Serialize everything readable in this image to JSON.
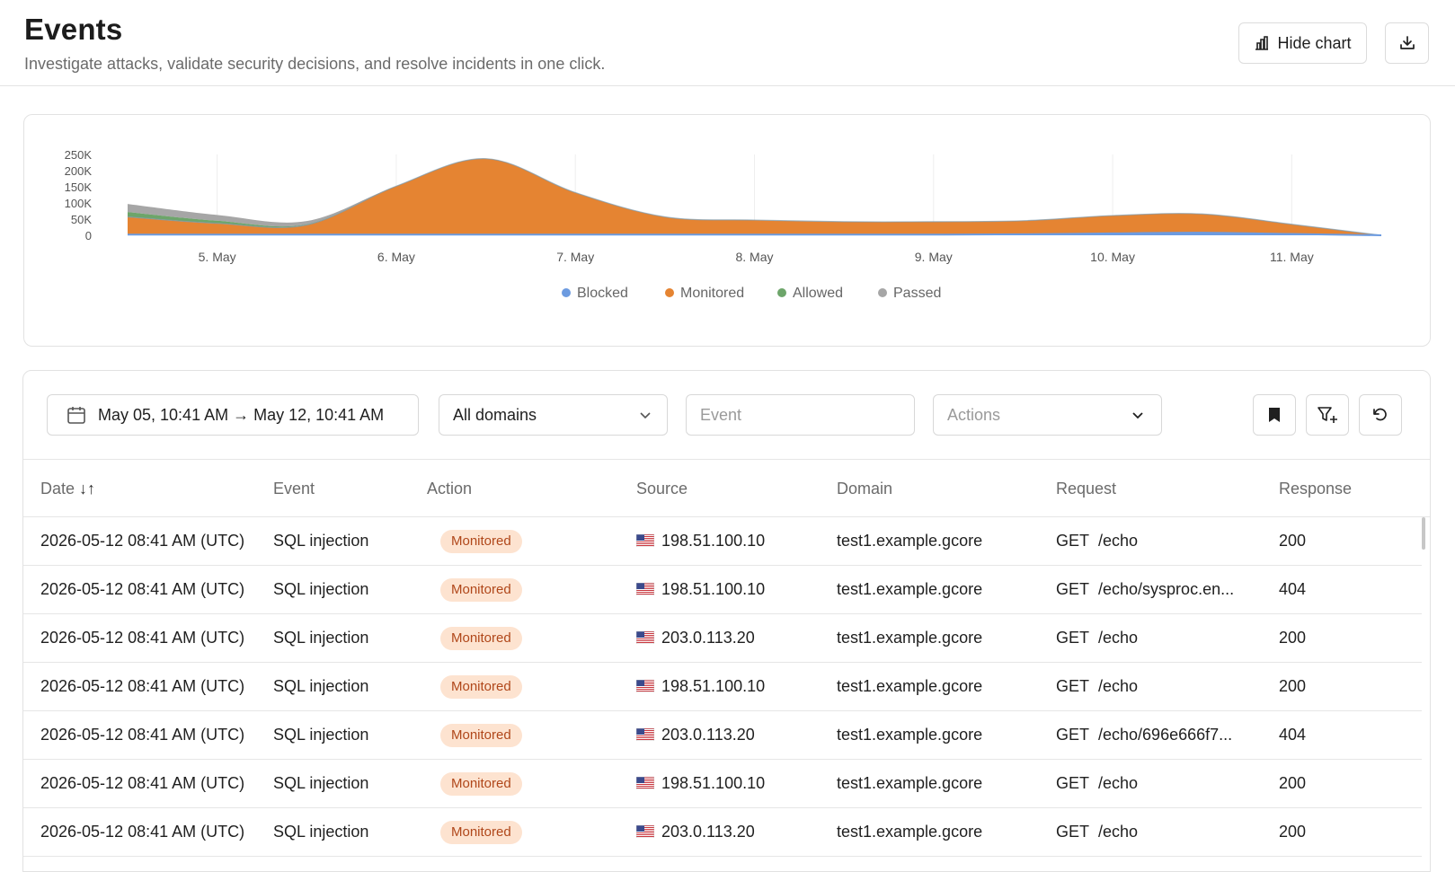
{
  "header": {
    "title": "Events",
    "subtitle": "Investigate attacks, validate security decisions, and resolve incidents in one click.",
    "hide_chart_label": "Hide chart"
  },
  "chart_data": {
    "type": "area",
    "x": [
      "4. May 12:00",
      "5. May",
      "5. May 12:00",
      "6. May",
      "6. May 12:00",
      "7. May",
      "7. May 12:00",
      "8. May",
      "8. May 12:00",
      "9. May",
      "9. May 12:00",
      "10. May",
      "10. May 12:00",
      "11. May",
      "11. May 10:41"
    ],
    "x_tick_labels": [
      "5. May",
      "6. May",
      "7. May",
      "8. May",
      "9. May",
      "10. May",
      "11. May"
    ],
    "y_tick_labels": [
      "0",
      "50K",
      "100K",
      "150K",
      "200K",
      "250K"
    ],
    "ylim": [
      0,
      250000
    ],
    "series": [
      {
        "name": "Blocked",
        "color": "#6c9be0",
        "values": [
          2000,
          2000,
          2000,
          2000,
          2000,
          2000,
          2000,
          2000,
          2000,
          2000,
          3000,
          6000,
          8000,
          4000,
          0
        ]
      },
      {
        "name": "Monitored",
        "color": "#e58432",
        "values": [
          55000,
          35000,
          30000,
          150000,
          235000,
          130000,
          55000,
          45000,
          40000,
          40000,
          42000,
          55000,
          58000,
          30000,
          0
        ]
      },
      {
        "name": "Allowed",
        "color": "#6da56a",
        "values": [
          15000,
          8000,
          2000,
          0,
          0,
          0,
          0,
          0,
          0,
          0,
          0,
          0,
          0,
          0,
          0
        ]
      },
      {
        "name": "Passed",
        "color": "#a6a6a6",
        "values": [
          25000,
          18000,
          10000,
          0,
          0,
          0,
          0,
          0,
          0,
          0,
          0,
          0,
          0,
          0,
          0
        ]
      }
    ],
    "legend_position": "bottom-center",
    "grid": false
  },
  "filters": {
    "date_range": "May 05, 10:41 AM → May 12, 10:41 AM",
    "domain": "All domains",
    "event_placeholder": "Event",
    "actions_placeholder": "Actions"
  },
  "table": {
    "columns": [
      "Date",
      "Event",
      "Action",
      "Source",
      "Domain",
      "Request",
      "Response"
    ],
    "sort_indicator": "↓↑",
    "rows": [
      {
        "date": "2026-05-12 08:41 AM (UTC)",
        "event": "SQL injection",
        "action": "Monitored",
        "source": "198.51.100.10",
        "domain": "test1.example.gcore",
        "method": "GET",
        "path": "/echo",
        "response": "200"
      },
      {
        "date": "2026-05-12 08:41 AM (UTC)",
        "event": "SQL injection",
        "action": "Monitored",
        "source": "198.51.100.10",
        "domain": "test1.example.gcore",
        "method": "GET",
        "path": "/echo/sysproc.en...",
        "response": "404"
      },
      {
        "date": "2026-05-12 08:41 AM (UTC)",
        "event": "SQL injection",
        "action": "Monitored",
        "source": "203.0.113.20",
        "domain": "test1.example.gcore",
        "method": "GET",
        "path": "/echo",
        "response": "200"
      },
      {
        "date": "2026-05-12 08:41 AM (UTC)",
        "event": "SQL injection",
        "action": "Monitored",
        "source": "198.51.100.10",
        "domain": "test1.example.gcore",
        "method": "GET",
        "path": "/echo",
        "response": "200"
      },
      {
        "date": "2026-05-12 08:41 AM (UTC)",
        "event": "SQL injection",
        "action": "Monitored",
        "source": "203.0.113.20",
        "domain": "test1.example.gcore",
        "method": "GET",
        "path": "/echo/696e666f7...",
        "response": "404"
      },
      {
        "date": "2026-05-12 08:41 AM (UTC)",
        "event": "SQL injection",
        "action": "Monitored",
        "source": "198.51.100.10",
        "domain": "test1.example.gcore",
        "method": "GET",
        "path": "/echo",
        "response": "200"
      },
      {
        "date": "2026-05-12 08:41 AM (UTC)",
        "event": "SQL injection",
        "action": "Monitored",
        "source": "203.0.113.20",
        "domain": "test1.example.gcore",
        "method": "GET",
        "path": "/echo",
        "response": "200"
      }
    ]
  },
  "icons": {
    "hide_chart": "bar-chart-icon",
    "download": "download-icon",
    "calendar": "calendar-icon",
    "domain_dropdown": "chevron-down-icon",
    "actions_dropdown": "chevron-down-icon",
    "bookmark": "bookmark-icon",
    "add_filter": "filter-plus-icon",
    "reset": "reset-icon",
    "flag": "us-flag-icon"
  }
}
